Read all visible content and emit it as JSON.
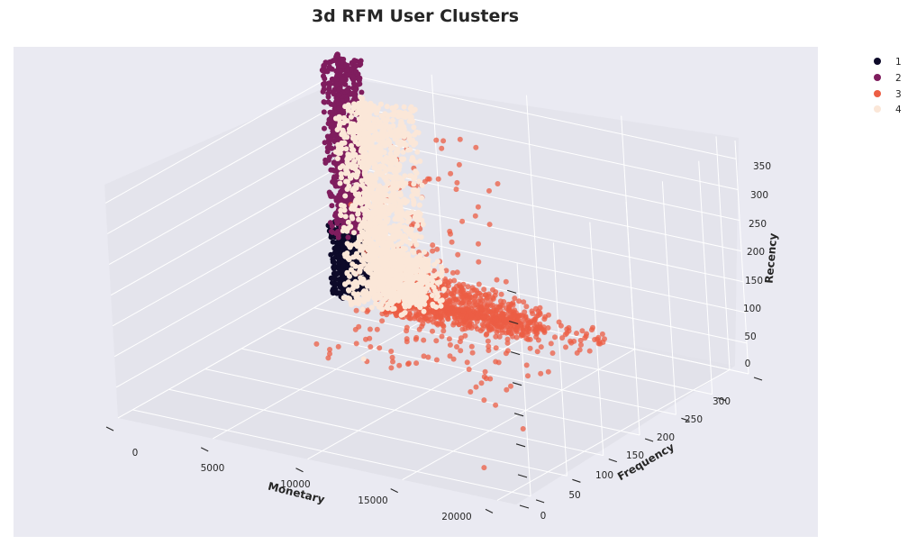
{
  "chart_data": {
    "type": "scatter",
    "projection": "3d",
    "title": "3d RFM User Clusters",
    "xlabel": "Monetary",
    "ylabel": "Frequency",
    "zlabel": "Recency",
    "xlim": [
      0,
      21000
    ],
    "ylim": [
      0,
      320
    ],
    "zlim": [
      0,
      380
    ],
    "xticks": [
      0,
      5000,
      10000,
      15000,
      20000
    ],
    "yticks": [
      0,
      50,
      100,
      150,
      200,
      250,
      300
    ],
    "zticks": [
      0,
      50,
      100,
      150,
      200,
      250,
      300,
      350
    ],
    "grid": true,
    "legend": {
      "placement": "top-right-outside"
    },
    "series": [
      {
        "name": "1",
        "color": "#0d0a29",
        "alpha": 1.0,
        "clusters": [
          {
            "x": [
              0,
              1200
            ],
            "y": [
              0,
              25
            ],
            "z": [
              0,
              120
            ],
            "n": 700
          },
          {
            "x": [
              0,
              600
            ],
            "y": [
              0,
              12
            ],
            "z": [
              0,
              95
            ],
            "n": 250
          }
        ],
        "points": []
      },
      {
        "name": "2",
        "color": "#7f1d5e",
        "alpha": 1.0,
        "clusters": [
          {
            "x": [
              0,
              1300
            ],
            "y": [
              0,
              25
            ],
            "z": [
              100,
              380
            ],
            "n": 900
          }
        ],
        "points": []
      },
      {
        "name": "3",
        "color": "#ec5e44",
        "alpha": 0.75,
        "clusters": [
          {
            "x": [
              3000,
              10500
            ],
            "y": [
              0,
              35
            ],
            "z": [
              0,
              50
            ],
            "n": 900
          },
          {
            "x": [
              3500,
              13500
            ],
            "y": [
              0,
              140
            ],
            "z": [
              0,
              35
            ],
            "n": 220
          },
          {
            "x": [
              3000,
              9000
            ],
            "y": [
              0,
              80
            ],
            "z": [
              30,
              300
            ],
            "n": 110
          }
        ],
        "points": [
          [
            19000,
            310,
            40
          ],
          [
            16500,
            260,
            150
          ],
          [
            14500,
            280,
            160
          ],
          [
            14000,
            180,
            30
          ],
          [
            12500,
            160,
            20
          ],
          [
            15000,
            190,
            35
          ],
          [
            17000,
            205,
            20
          ],
          [
            13000,
            60,
            20
          ],
          [
            12000,
            110,
            55
          ],
          [
            11000,
            100,
            90
          ],
          [
            9500,
            70,
            60
          ],
          [
            8000,
            50,
            70
          ],
          [
            10500,
            130,
            40
          ],
          [
            13500,
            90,
            10
          ],
          [
            11500,
            150,
            80
          ],
          [
            6500,
            60,
            250
          ],
          [
            6500,
            30,
            290
          ],
          [
            7000,
            20,
            260
          ],
          [
            6500,
            60,
            230
          ],
          [
            8500,
            40,
            200
          ]
        ]
      },
      {
        "name": "4",
        "color": "#fbe7d8",
        "alpha": 1.0,
        "clusters": [
          {
            "x": [
              1200,
              4200
            ],
            "y": [
              0,
              40
            ],
            "z": [
              0,
              320
            ],
            "n": 1400
          },
          {
            "x": [
              1800,
              5000
            ],
            "y": [
              0,
              30
            ],
            "z": [
              0,
              80
            ],
            "n": 400
          }
        ],
        "points": [
          [
            8200,
            80,
            105
          ],
          [
            10500,
            250,
            120
          ]
        ]
      }
    ]
  }
}
